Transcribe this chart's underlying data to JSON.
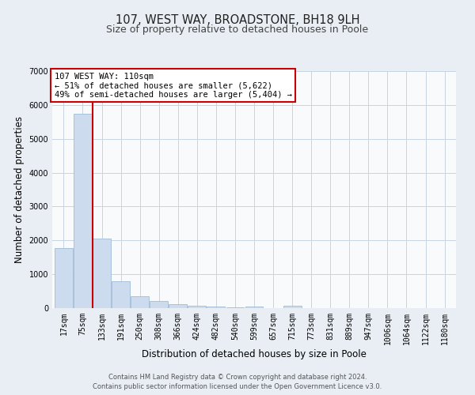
{
  "title": "107, WEST WAY, BROADSTONE, BH18 9LH",
  "subtitle": "Size of property relative to detached houses in Poole",
  "xlabel": "Distribution of detached houses by size in Poole",
  "ylabel": "Number of detached properties",
  "bar_labels": [
    "17sqm",
    "75sqm",
    "133sqm",
    "191sqm",
    "250sqm",
    "308sqm",
    "366sqm",
    "424sqm",
    "482sqm",
    "540sqm",
    "599sqm",
    "657sqm",
    "715sqm",
    "773sqm",
    "831sqm",
    "889sqm",
    "947sqm",
    "1006sqm",
    "1064sqm",
    "1122sqm",
    "1180sqm"
  ],
  "bar_values": [
    1780,
    5750,
    2050,
    790,
    350,
    215,
    110,
    65,
    40,
    30,
    55,
    0,
    60,
    0,
    0,
    0,
    0,
    0,
    0,
    0,
    0
  ],
  "bar_color": "#ccdcee",
  "bar_edge_color": "#a0bcd8",
  "vline_color": "#cc0000",
  "vline_x": 1.5,
  "ylim": [
    0,
    7000
  ],
  "yticks": [
    0,
    1000,
    2000,
    3000,
    4000,
    5000,
    6000,
    7000
  ],
  "annotation_title": "107 WEST WAY: 110sqm",
  "annotation_line1": "← 51% of detached houses are smaller (5,622)",
  "annotation_line2": "49% of semi-detached houses are larger (5,404) →",
  "footer_line1": "Contains HM Land Registry data © Crown copyright and database right 2024.",
  "footer_line2": "Contains public sector information licensed under the Open Government Licence v3.0.",
  "background_color": "#e8eef4",
  "plot_bg_color": "#f8fafc",
  "grid_color": "#c8d4e0",
  "title_fontsize": 10.5,
  "subtitle_fontsize": 9,
  "axis_label_fontsize": 8.5,
  "tick_fontsize": 7,
  "footer_fontsize": 6,
  "ann_fontsize": 7.5
}
